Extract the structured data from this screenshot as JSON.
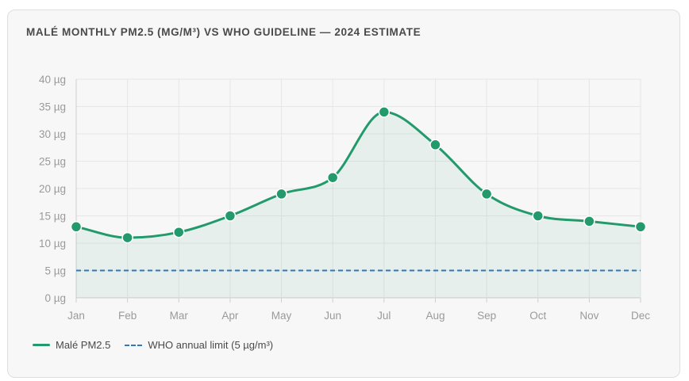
{
  "title": "MALÉ MONTHLY PM2.5 (MG/M³) VS WHO GUIDELINE — 2024 ESTIMATE",
  "legend": {
    "series_label": "Malé PM2.5",
    "guideline_label": "WHO annual limit (5 µg/m³)"
  },
  "colors": {
    "series": "#239a6c",
    "guideline": "#2f7ab8",
    "grid": "#e6e6e6",
    "axis": "#cfcfcf"
  },
  "chart_data": {
    "type": "line",
    "categories": [
      "Jan",
      "Feb",
      "Mar",
      "Apr",
      "May",
      "Jun",
      "Jul",
      "Aug",
      "Sep",
      "Oct",
      "Nov",
      "Dec"
    ],
    "series": [
      {
        "name": "Malé PM2.5",
        "values": [
          13,
          11,
          12,
          15,
          19,
          22,
          34,
          28,
          19,
          15,
          14,
          13
        ],
        "fill": "area",
        "smooth": true
      }
    ],
    "reference_lines": [
      {
        "name": "WHO annual limit (5 µg/m³)",
        "value": 5,
        "style": "dashed"
      }
    ],
    "ylim": [
      0,
      40
    ],
    "yticks": [
      0,
      5,
      10,
      15,
      20,
      25,
      30,
      35,
      40
    ],
    "ytick_labels": [
      "0 µg",
      "5 µg",
      "10 µg",
      "15 µg",
      "20 µg",
      "25 µg",
      "30 µg",
      "35 µg",
      "40 µg"
    ],
    "grid": true,
    "legend_position": "bottom-left"
  }
}
